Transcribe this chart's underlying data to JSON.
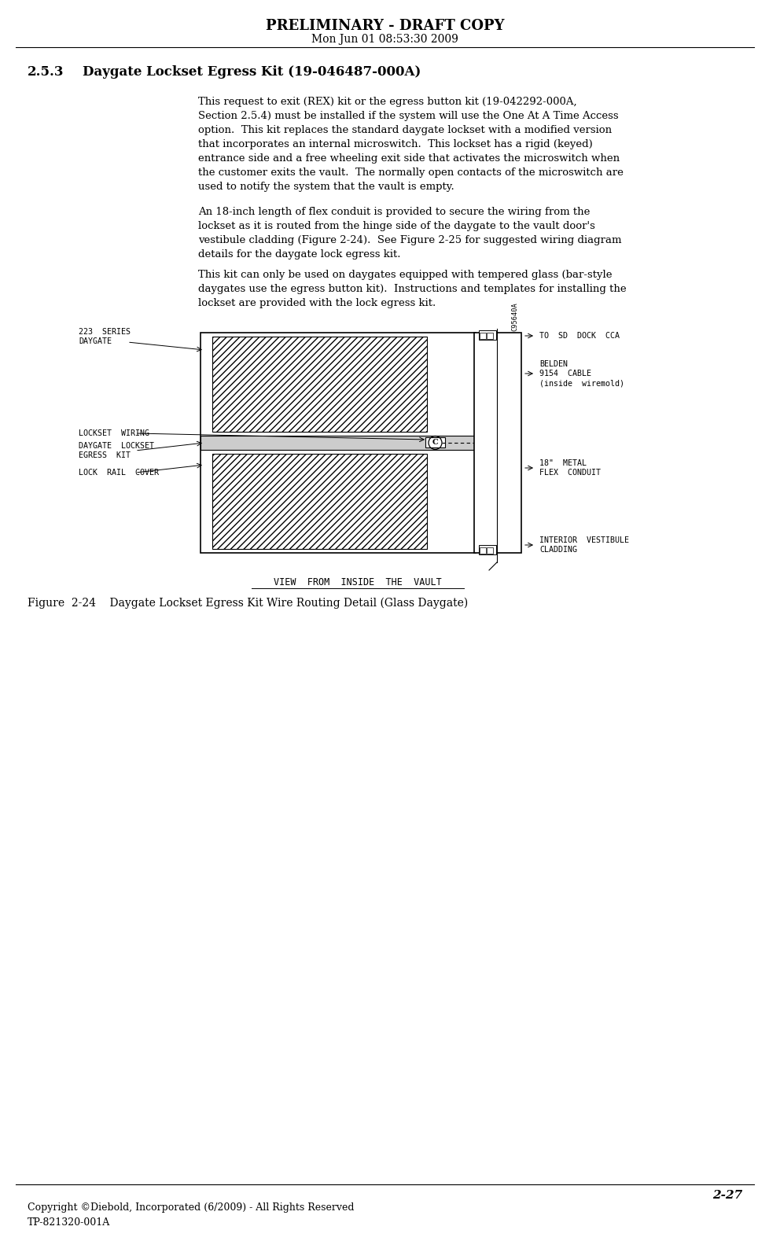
{
  "page_width": 9.79,
  "page_height": 15.78,
  "bg_color": "#ffffff",
  "header_title": "PRELIMINARY - DRAFT COPY",
  "header_date": "Mon Jun 01 08:53:30 2009",
  "section_number": "2.5.3",
  "section_title": "Daygate Lockset Egress Kit (19-046487-000A)",
  "para1": "This request to exit (REX) kit or the egress button kit (19-042292-000A,\nSection 2.5.4) must be installed if the system will use the One At A Time Access\noption.  This kit replaces the standard daygate lockset with a modified version\nthat incorporates an internal microswitch.  This lockset has a rigid (keyed)\nentrance side and a free wheeling exit side that activates the microswitch when\nthe customer exits the vault.  The normally open contacts of the microswitch are\nused to notify the system that the vault is empty.",
  "para2": "An 18-inch length of flex conduit is provided to secure the wiring from the\nlockset as it is routed from the hinge side of the daygate to the vault door's\nvestibule cladding (Figure 2-24).  See Figure 2-25 for suggested wiring diagram\ndetails for the daygate lock egress kit.",
  "para3": "This kit can only be used on daygates equipped with tempered glass (bar-style\ndaygates use the egress button kit).  Instructions and templates for installing the\nlockset are provided with the lock egress kit.",
  "figure_caption": "Figure  2-24    Daygate Lockset Egress Kit Wire Routing Detail (Glass Daygate)",
  "page_number": "2-27",
  "footer_left1": "Copyright ©Diebold, Incorporated (6/2009) - All Rights Reserved",
  "footer_left2": "TP-821320-001A",
  "diagram_labels_left": [
    "223  SERIES\nDAYGATE",
    "LOCKSET  WIRING",
    "DAYGATE  LOCKSET\nEGRESS  KIT",
    "LOCK  RAIL  COVER"
  ],
  "diagram_labels_right": [
    "TO  SD  DOCK  CCA",
    "BELDEN\n9154  CABLE\n(inside  wiremold)",
    "18\"  METAL\nFLEX  CONDUIT",
    "INTERIOR  VESTIBULE\nCLADDING"
  ],
  "diagram_bottom_label": "VIEW  FROM  INSIDE  THE  VAULT",
  "label_id": "C95640A"
}
